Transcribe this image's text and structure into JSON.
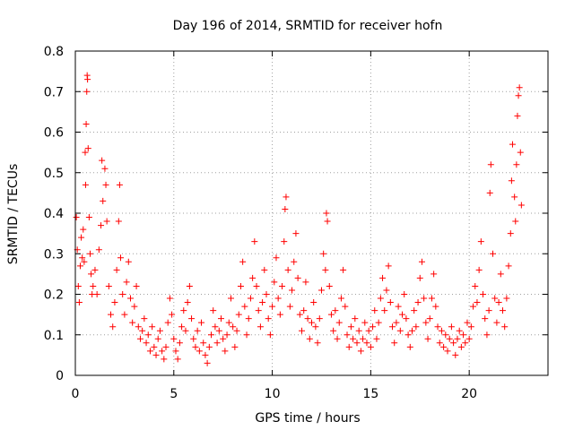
{
  "chart_data": {
    "type": "scatter",
    "title": "Day 196 of 2014, SRMTID for receiver hofn",
    "xlabel": "GPS time / hours",
    "ylabel": "SRMTID / TECUs",
    "xlim": [
      0,
      24
    ],
    "ylim": [
      0,
      0.8
    ],
    "xticks": [
      0,
      5,
      10,
      15,
      20
    ],
    "xtick_labels": [
      "0",
      "5",
      "10",
      "15",
      "20"
    ],
    "yticks": [
      0,
      0.1,
      0.2,
      0.3,
      0.4,
      0.5,
      0.6,
      0.7,
      0.8
    ],
    "ytick_labels": [
      "0",
      "0.1",
      "0.2",
      "0.3",
      "0.4",
      "0.5",
      "0.6",
      "0.7",
      "0.8"
    ],
    "grid": true,
    "marker": "+",
    "marker_color": "#ff0000",
    "series": [
      {
        "name": "SRMTID",
        "points": [
          [
            0.05,
            0.39
          ],
          [
            0.1,
            0.31
          ],
          [
            0.15,
            0.22
          ],
          [
            0.2,
            0.18
          ],
          [
            0.25,
            0.27
          ],
          [
            0.3,
            0.34
          ],
          [
            0.35,
            0.29
          ],
          [
            0.4,
            0.36
          ],
          [
            0.45,
            0.28
          ],
          [
            0.5,
            0.55
          ],
          [
            0.52,
            0.47
          ],
          [
            0.55,
            0.62
          ],
          [
            0.58,
            0.7
          ],
          [
            0.6,
            0.74
          ],
          [
            0.62,
            0.73
          ],
          [
            0.65,
            0.56
          ],
          [
            0.7,
            0.39
          ],
          [
            0.75,
            0.3
          ],
          [
            0.8,
            0.25
          ],
          [
            0.85,
            0.2
          ],
          [
            0.9,
            0.22
          ],
          [
            1.0,
            0.26
          ],
          [
            1.1,
            0.2
          ],
          [
            1.2,
            0.31
          ],
          [
            1.3,
            0.37
          ],
          [
            1.35,
            0.53
          ],
          [
            1.4,
            0.43
          ],
          [
            1.5,
            0.51
          ],
          [
            1.55,
            0.47
          ],
          [
            1.6,
            0.38
          ],
          [
            1.7,
            0.22
          ],
          [
            1.8,
            0.15
          ],
          [
            1.9,
            0.12
          ],
          [
            2.0,
            0.18
          ],
          [
            2.1,
            0.26
          ],
          [
            2.2,
            0.38
          ],
          [
            2.25,
            0.47
          ],
          [
            2.3,
            0.29
          ],
          [
            2.4,
            0.2
          ],
          [
            2.5,
            0.15
          ],
          [
            2.6,
            0.23
          ],
          [
            2.7,
            0.28
          ],
          [
            2.8,
            0.19
          ],
          [
            2.9,
            0.13
          ],
          [
            3.0,
            0.17
          ],
          [
            3.1,
            0.22
          ],
          [
            3.2,
            0.12
          ],
          [
            3.3,
            0.09
          ],
          [
            3.4,
            0.11
          ],
          [
            3.5,
            0.14
          ],
          [
            3.6,
            0.08
          ],
          [
            3.7,
            0.1
          ],
          [
            3.8,
            0.06
          ],
          [
            3.9,
            0.12
          ],
          [
            4.0,
            0.07
          ],
          [
            4.1,
            0.05
          ],
          [
            4.2,
            0.09
          ],
          [
            4.3,
            0.11
          ],
          [
            4.4,
            0.06
          ],
          [
            4.5,
            0.04
          ],
          [
            4.6,
            0.07
          ],
          [
            4.7,
            0.13
          ],
          [
            4.8,
            0.19
          ],
          [
            4.9,
            0.15
          ],
          [
            5.0,
            0.09
          ],
          [
            5.1,
            0.06
          ],
          [
            5.2,
            0.04
          ],
          [
            5.3,
            0.08
          ],
          [
            5.4,
            0.12
          ],
          [
            5.5,
            0.16
          ],
          [
            5.6,
            0.11
          ],
          [
            5.7,
            0.18
          ],
          [
            5.8,
            0.22
          ],
          [
            5.9,
            0.14
          ],
          [
            6.0,
            0.09
          ],
          [
            6.1,
            0.07
          ],
          [
            6.2,
            0.11
          ],
          [
            6.3,
            0.06
          ],
          [
            6.4,
            0.13
          ],
          [
            6.5,
            0.08
          ],
          [
            6.6,
            0.05
          ],
          [
            6.7,
            0.03
          ],
          [
            6.8,
            0.07
          ],
          [
            6.9,
            0.1
          ],
          [
            7.0,
            0.16
          ],
          [
            7.1,
            0.12
          ],
          [
            7.2,
            0.08
          ],
          [
            7.3,
            0.11
          ],
          [
            7.4,
            0.14
          ],
          [
            7.5,
            0.09
          ],
          [
            7.6,
            0.06
          ],
          [
            7.7,
            0.1
          ],
          [
            7.8,
            0.13
          ],
          [
            7.9,
            0.19
          ],
          [
            8.0,
            0.12
          ],
          [
            8.1,
            0.07
          ],
          [
            8.2,
            0.11
          ],
          [
            8.3,
            0.15
          ],
          [
            8.4,
            0.22
          ],
          [
            8.5,
            0.28
          ],
          [
            8.6,
            0.17
          ],
          [
            8.7,
            0.1
          ],
          [
            8.8,
            0.14
          ],
          [
            8.9,
            0.19
          ],
          [
            9.0,
            0.24
          ],
          [
            9.1,
            0.33
          ],
          [
            9.2,
            0.22
          ],
          [
            9.3,
            0.16
          ],
          [
            9.4,
            0.12
          ],
          [
            9.5,
            0.18
          ],
          [
            9.6,
            0.26
          ],
          [
            9.7,
            0.2
          ],
          [
            9.8,
            0.14
          ],
          [
            9.9,
            0.1
          ],
          [
            10.0,
            0.17
          ],
          [
            10.1,
            0.23
          ],
          [
            10.2,
            0.29
          ],
          [
            10.3,
            0.19
          ],
          [
            10.4,
            0.15
          ],
          [
            10.5,
            0.22
          ],
          [
            10.6,
            0.33
          ],
          [
            10.65,
            0.41
          ],
          [
            10.7,
            0.44
          ],
          [
            10.8,
            0.26
          ],
          [
            10.9,
            0.17
          ],
          [
            11.0,
            0.21
          ],
          [
            11.1,
            0.28
          ],
          [
            11.2,
            0.35
          ],
          [
            11.3,
            0.24
          ],
          [
            11.4,
            0.15
          ],
          [
            11.5,
            0.11
          ],
          [
            11.6,
            0.16
          ],
          [
            11.7,
            0.23
          ],
          [
            11.8,
            0.14
          ],
          [
            11.9,
            0.09
          ],
          [
            12.0,
            0.13
          ],
          [
            12.1,
            0.18
          ],
          [
            12.2,
            0.12
          ],
          [
            12.3,
            0.08
          ],
          [
            12.4,
            0.14
          ],
          [
            12.5,
            0.21
          ],
          [
            12.6,
            0.3
          ],
          [
            12.7,
            0.26
          ],
          [
            12.75,
            0.4
          ],
          [
            12.8,
            0.38
          ],
          [
            12.9,
            0.22
          ],
          [
            13.0,
            0.15
          ],
          [
            13.1,
            0.11
          ],
          [
            13.2,
            0.16
          ],
          [
            13.3,
            0.09
          ],
          [
            13.4,
            0.13
          ],
          [
            13.5,
            0.19
          ],
          [
            13.6,
            0.26
          ],
          [
            13.7,
            0.17
          ],
          [
            13.8,
            0.1
          ],
          [
            13.9,
            0.07
          ],
          [
            14.0,
            0.12
          ],
          [
            14.1,
            0.09
          ],
          [
            14.2,
            0.14
          ],
          [
            14.3,
            0.08
          ],
          [
            14.4,
            0.11
          ],
          [
            14.5,
            0.06
          ],
          [
            14.6,
            0.09
          ],
          [
            14.7,
            0.13
          ],
          [
            14.8,
            0.08
          ],
          [
            14.9,
            0.11
          ],
          [
            15.0,
            0.07
          ],
          [
            15.1,
            0.12
          ],
          [
            15.2,
            0.16
          ],
          [
            15.3,
            0.09
          ],
          [
            15.4,
            0.13
          ],
          [
            15.5,
            0.19
          ],
          [
            15.6,
            0.24
          ],
          [
            15.7,
            0.16
          ],
          [
            15.8,
            0.21
          ],
          [
            15.9,
            0.27
          ],
          [
            16.0,
            0.18
          ],
          [
            16.1,
            0.12
          ],
          [
            16.2,
            0.08
          ],
          [
            16.3,
            0.13
          ],
          [
            16.4,
            0.17
          ],
          [
            16.5,
            0.11
          ],
          [
            16.6,
            0.15
          ],
          [
            16.7,
            0.2
          ],
          [
            16.8,
            0.14
          ],
          [
            16.9,
            0.1
          ],
          [
            17.0,
            0.07
          ],
          [
            17.1,
            0.11
          ],
          [
            17.2,
            0.16
          ],
          [
            17.3,
            0.12
          ],
          [
            17.4,
            0.18
          ],
          [
            17.5,
            0.24
          ],
          [
            17.6,
            0.28
          ],
          [
            17.7,
            0.19
          ],
          [
            17.8,
            0.13
          ],
          [
            17.9,
            0.09
          ],
          [
            18.0,
            0.14
          ],
          [
            18.1,
            0.19
          ],
          [
            18.2,
            0.25
          ],
          [
            18.3,
            0.17
          ],
          [
            18.4,
            0.12
          ],
          [
            18.5,
            0.08
          ],
          [
            18.6,
            0.11
          ],
          [
            18.7,
            0.07
          ],
          [
            18.8,
            0.1
          ],
          [
            18.9,
            0.06
          ],
          [
            19.0,
            0.09
          ],
          [
            19.1,
            0.12
          ],
          [
            19.2,
            0.08
          ],
          [
            19.3,
            0.05
          ],
          [
            19.4,
            0.09
          ],
          [
            19.5,
            0.11
          ],
          [
            19.6,
            0.07
          ],
          [
            19.7,
            0.1
          ],
          [
            19.8,
            0.08
          ],
          [
            19.9,
            0.13
          ],
          [
            20.0,
            0.09
          ],
          [
            20.1,
            0.12
          ],
          [
            20.2,
            0.17
          ],
          [
            20.3,
            0.22
          ],
          [
            20.4,
            0.18
          ],
          [
            20.5,
            0.26
          ],
          [
            20.6,
            0.33
          ],
          [
            20.7,
            0.2
          ],
          [
            20.8,
            0.14
          ],
          [
            20.9,
            0.1
          ],
          [
            21.0,
            0.16
          ],
          [
            21.05,
            0.45
          ],
          [
            21.1,
            0.52
          ],
          [
            21.2,
            0.3
          ],
          [
            21.3,
            0.19
          ],
          [
            21.4,
            0.13
          ],
          [
            21.5,
            0.18
          ],
          [
            21.6,
            0.25
          ],
          [
            21.7,
            0.16
          ],
          [
            21.8,
            0.12
          ],
          [
            21.9,
            0.19
          ],
          [
            22.0,
            0.27
          ],
          [
            22.1,
            0.35
          ],
          [
            22.15,
            0.48
          ],
          [
            22.2,
            0.57
          ],
          [
            22.3,
            0.44
          ],
          [
            22.35,
            0.38
          ],
          [
            22.4,
            0.52
          ],
          [
            22.45,
            0.64
          ],
          [
            22.5,
            0.69
          ],
          [
            22.55,
            0.71
          ],
          [
            22.6,
            0.55
          ],
          [
            22.65,
            0.42
          ]
        ]
      }
    ]
  }
}
